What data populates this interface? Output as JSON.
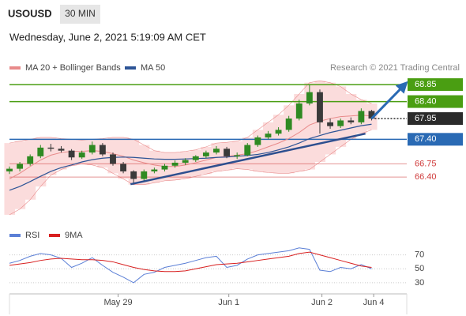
{
  "header": {
    "symbol": "USOUSD",
    "interval": "30 MIN",
    "timestamp": "Wednesday, June 2, 2021 5:19:09 AM CET"
  },
  "chart_data": [
    {
      "type": "candlestick",
      "credit": "Research © 2021 Trading Central",
      "candles": {
        "open": [
          66.55,
          66.62,
          66.75,
          66.95,
          67.18,
          67.15,
          67.1,
          66.92,
          67.05,
          67.25,
          67.0,
          66.75,
          66.55,
          66.35,
          66.55,
          66.6,
          66.7,
          66.78,
          66.85,
          66.95,
          67.05,
          67.15,
          66.95,
          66.98,
          67.25,
          67.45,
          67.55,
          67.65,
          67.95,
          68.35,
          68.65,
          67.85,
          67.75,
          67.9,
          67.85,
          68.15
        ],
        "high": [
          66.68,
          66.8,
          67.0,
          67.25,
          67.28,
          67.22,
          67.14,
          67.1,
          67.34,
          67.3,
          67.05,
          66.8,
          66.58,
          66.6,
          66.65,
          66.75,
          66.84,
          66.9,
          66.98,
          67.1,
          67.22,
          67.2,
          67.05,
          67.3,
          67.5,
          67.62,
          67.72,
          68.02,
          68.45,
          68.85,
          68.72,
          67.95,
          67.95,
          67.98,
          68.22,
          68.18
        ],
        "low": [
          66.48,
          66.55,
          66.7,
          66.9,
          67.08,
          67.05,
          66.85,
          66.88,
          67.0,
          66.95,
          66.7,
          66.5,
          66.2,
          66.3,
          66.5,
          66.55,
          66.65,
          66.72,
          66.8,
          66.9,
          67.0,
          66.9,
          66.88,
          66.95,
          67.2,
          67.4,
          67.5,
          67.6,
          67.9,
          68.3,
          67.55,
          67.68,
          67.7,
          67.8,
          67.8,
          67.9
        ],
        "close": [
          66.62,
          66.75,
          66.95,
          67.18,
          67.15,
          67.1,
          66.92,
          67.05,
          67.25,
          67.0,
          66.75,
          66.55,
          66.35,
          66.55,
          66.6,
          66.7,
          66.78,
          66.85,
          66.95,
          67.05,
          67.15,
          66.95,
          66.98,
          67.25,
          67.45,
          67.55,
          67.65,
          67.95,
          68.35,
          68.65,
          67.85,
          67.75,
          67.9,
          67.85,
          68.15,
          67.95
        ],
        "up_color": "#2f8a22",
        "down_color": "#3a3a3a"
      },
      "series": [
        {
          "name": "MA 20 + Bollinger Bands",
          "color": "#e88a8a",
          "band_color": "#fbdcdc",
          "values": [
            66.35,
            66.5,
            66.68,
            66.85,
            66.98,
            67.05,
            67.08,
            67.08,
            67.1,
            67.08,
            67.02,
            66.95,
            66.85,
            66.78,
            66.72,
            66.68,
            66.68,
            66.72,
            66.78,
            66.85,
            66.92,
            66.95,
            66.98,
            67.02,
            67.1,
            67.2,
            67.3,
            67.42,
            67.58,
            67.78,
            67.88,
            67.95,
            68.0,
            68.02,
            68.04,
            68.02
          ],
          "upper": [
            67.3,
            67.35,
            67.4,
            67.45,
            67.45,
            67.42,
            67.4,
            67.38,
            67.4,
            67.42,
            67.45,
            67.45,
            67.4,
            67.25,
            67.1,
            67.05,
            67.05,
            67.08,
            67.12,
            67.2,
            67.3,
            67.32,
            67.35,
            67.45,
            67.65,
            67.85,
            68.05,
            68.3,
            68.6,
            68.9,
            68.95,
            68.9,
            68.8,
            68.6,
            68.45,
            68.35
          ],
          "lower": [
            65.4,
            65.55,
            65.8,
            66.15,
            66.45,
            66.6,
            66.7,
            66.75,
            66.72,
            66.65,
            66.5,
            66.35,
            66.2,
            66.2,
            66.25,
            66.3,
            66.32,
            66.36,
            66.42,
            66.48,
            66.55,
            66.58,
            66.62,
            66.6,
            66.55,
            66.52,
            66.5,
            66.5,
            66.55,
            66.6,
            66.8,
            67.0,
            67.2,
            67.4,
            67.55,
            67.65
          ]
        },
        {
          "name": "MA 50",
          "color": "#2d5496",
          "values": [
            66.05,
            66.15,
            66.28,
            66.42,
            66.55,
            66.65,
            66.72,
            66.8,
            66.86,
            66.9,
            66.92,
            66.93,
            66.92,
            66.9,
            66.88,
            66.87,
            66.87,
            66.88,
            66.89,
            66.9,
            66.92,
            66.93,
            66.95,
            66.97,
            67.0,
            67.05,
            67.12,
            67.2,
            67.3,
            67.42,
            67.5,
            67.58,
            67.64,
            67.7,
            67.76,
            67.8
          ]
        }
      ],
      "levels": [
        {
          "value": 68.85,
          "label": "68.85",
          "color": "#4a9e12",
          "line": "solid",
          "box": true
        },
        {
          "value": 68.4,
          "label": "68.40",
          "color": "#4a9e12",
          "line": "solid",
          "box": true
        },
        {
          "value": 67.95,
          "label": "67.95",
          "color": "#2b2b2b",
          "line": "dotted",
          "box": true
        },
        {
          "value": 67.4,
          "label": "67.40",
          "color": "#2a6ab4",
          "line": "solid",
          "box": true
        },
        {
          "value": 66.75,
          "label": "66.75",
          "color": "#d03c3c",
          "line": "solid",
          "box": false
        },
        {
          "value": 66.4,
          "label": "66.40",
          "color": "#d03c3c",
          "line": "solid",
          "box": false
        }
      ],
      "trendlines": [
        {
          "x": [
            11.7,
            34.4
          ],
          "y": [
            66.21,
            67.55
          ],
          "color": "#2d4f8f",
          "arrow": false
        },
        {
          "x": [
            35.0,
            38.2
          ],
          "y": [
            67.95,
            68.85
          ],
          "color": "#2a6ab4",
          "arrow": true
        }
      ],
      "xlim": [
        0,
        38.4
      ],
      "ylim": [
        65.23,
        69.04
      ]
    },
    {
      "type": "line",
      "series": [
        {
          "name": "RSI",
          "color": "#5b7fd6",
          "values": [
            58,
            62,
            68,
            72,
            70,
            65,
            52,
            58,
            66,
            55,
            45,
            38,
            30,
            42,
            45,
            52,
            55,
            58,
            62,
            66,
            68,
            52,
            55,
            64,
            70,
            72,
            74,
            76,
            80,
            78,
            48,
            46,
            52,
            50,
            56,
            50
          ]
        },
        {
          "name": "9MA",
          "color": "#d82020",
          "values": [
            55,
            57,
            59,
            62,
            64,
            65,
            64,
            63,
            63,
            62,
            60,
            56,
            52,
            49,
            47,
            46,
            46,
            47,
            50,
            53,
            56,
            57,
            58,
            60,
            62,
            64,
            66,
            68,
            72,
            74,
            70,
            66,
            62,
            58,
            54,
            52
          ]
        }
      ],
      "xlim": [
        0,
        38.4
      ],
      "ylim": [
        14,
        90
      ],
      "yticks": [
        30,
        50,
        70
      ],
      "xticks": [
        {
          "value": 10.5,
          "label": "May 29"
        },
        {
          "value": 21.2,
          "label": "Jun 1"
        },
        {
          "value": 30.2,
          "label": "Jun 2"
        },
        {
          "value": 35.2,
          "label": "Jun 4"
        }
      ]
    }
  ]
}
